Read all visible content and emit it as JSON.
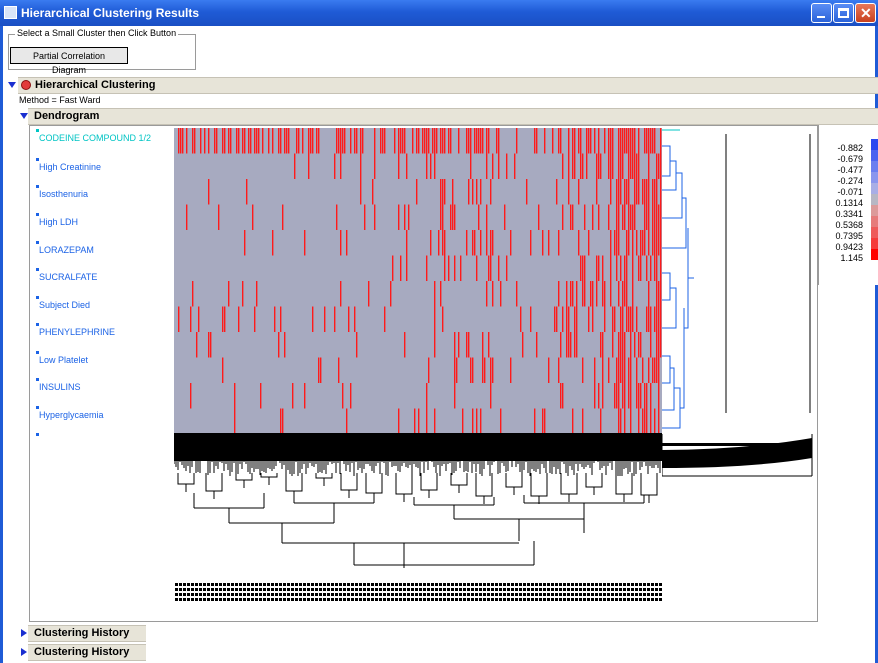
{
  "window": {
    "title": "Hierarchical Clustering Results"
  },
  "controls": {
    "group_label": "Select a Small Cluster then Click Button",
    "button_label": "Partial Correlation Diagram"
  },
  "sections": {
    "hierarchical": "Hierarchical Clustering",
    "method": "Method = Fast Ward",
    "dendrogram": "Dendrogram",
    "history1": "Clustering History",
    "history2": "Clustering History"
  },
  "rows": [
    "CODEINE COMPOUND 1/2",
    "High Creatinine",
    "Isosthenuria",
    "High LDH",
    "LORAZEPAM",
    "SUCRALFATE",
    "Subject Died",
    "PHENYLEPHRINE",
    "Low Platelet",
    "INSULINS",
    "Hyperglycaemia"
  ],
  "color_scale": {
    "values": [
      "-0.882",
      "-0.679",
      "-0.477",
      "-0.274",
      "-0.071",
      "0.1314",
      "0.3341",
      "0.5368",
      "0.7395",
      "0.9423",
      "1.145"
    ],
    "colors": [
      "#2a48f0",
      "#4a63f0",
      "#6a7ef0",
      "#8a96ee",
      "#a8aee6",
      "#b7b7c4",
      "#dc9a9a",
      "#e67b7b",
      "#ee5a5a",
      "#f53a3a",
      "#ff0000"
    ]
  },
  "colors": {
    "heat_base": "#a7aac0",
    "heat_hot": "#ff1a1a",
    "row_label": "#1c63e6",
    "first_row_label": "#00c4c4"
  }
}
